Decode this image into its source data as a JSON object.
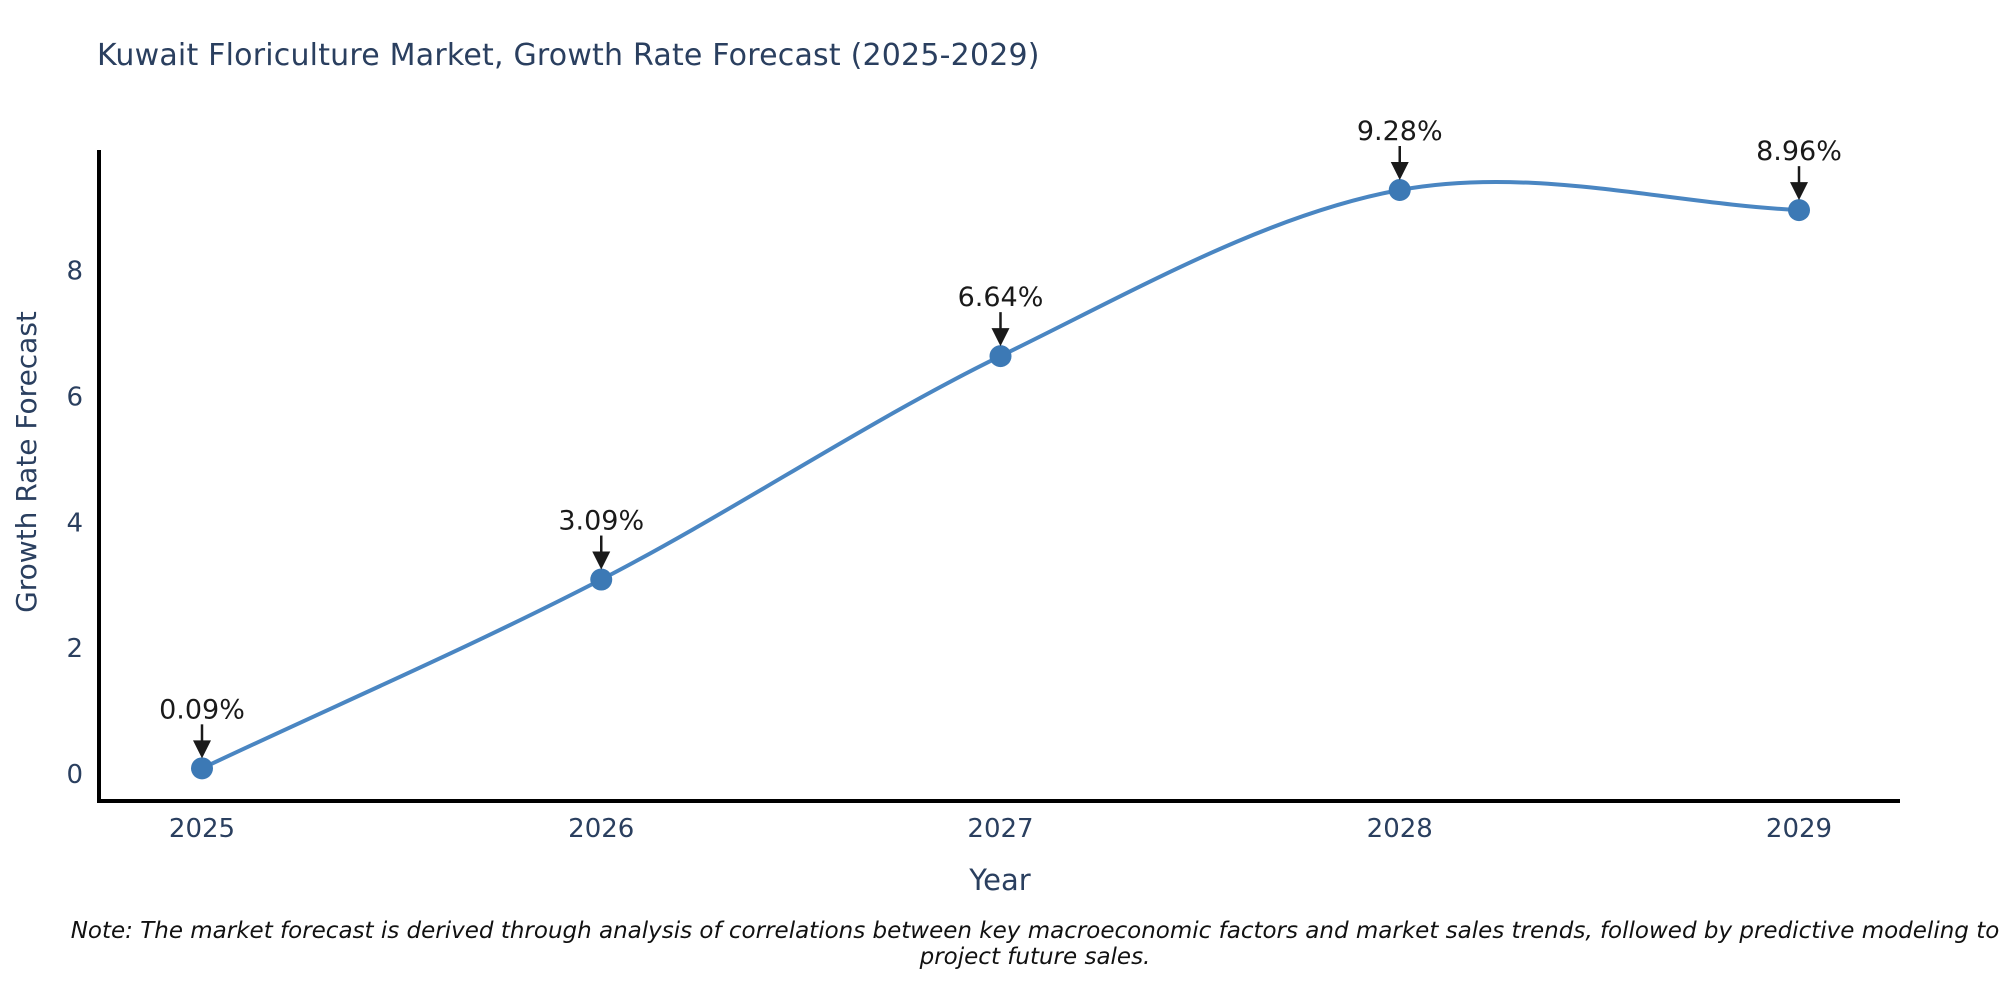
{
  "note": "Note: The market forecast is derived through analysis of correlations between key macroeconomic factors and market sales trends, followed by predictive modeling to project future sales.",
  "chart_data": {
    "type": "line",
    "title": "Kuwait Floriculture Market, Growth Rate Forecast (2025-2029)",
    "xlabel": "Year",
    "ylabel": "Growth Rate Forecast",
    "x": [
      2025,
      2026,
      2027,
      2028,
      2029
    ],
    "series": [
      {
        "name": "Growth Rate Forecast",
        "values": [
          0.09,
          3.09,
          6.64,
          9.28,
          8.96
        ]
      }
    ],
    "point_labels": [
      "0.09%",
      "3.09%",
      "6.64%",
      "9.28%",
      "8.96%"
    ],
    "yticks": [
      0,
      2,
      4,
      6,
      8
    ],
    "ylim": [
      -0.45,
      9.9
    ],
    "grid": false,
    "legend": "none",
    "line_shape": "spline",
    "line_color": "#4a86c2",
    "marker_color": "#3c79b5",
    "axis_color": "#000000",
    "tick_color": "#2a3f5f",
    "annotation_color": "#1a1a1a"
  }
}
